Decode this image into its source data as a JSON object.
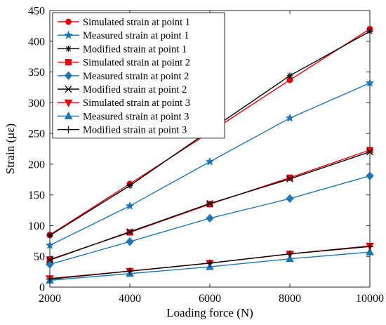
{
  "chart_data": {
    "type": "line",
    "title": "",
    "xlabel": "Loading force (N)",
    "ylabel": "Strain (με)",
    "xlim": [
      2000,
      10000
    ],
    "ylim": [
      0,
      450
    ],
    "xticks": [
      2000,
      4000,
      6000,
      8000,
      10000
    ],
    "yticks": [
      0,
      50,
      100,
      150,
      200,
      250,
      300,
      350,
      400,
      450
    ],
    "grid": false,
    "legend_position": "top-left",
    "x": [
      2000,
      4000,
      6000,
      8000,
      10000
    ],
    "series": [
      {
        "name": "Simulated strain at point 1",
        "color": "#e8000b",
        "marker": "circle",
        "values": [
          85,
          168,
          252,
          337,
          420
        ]
      },
      {
        "name": "Measured strain at point 1",
        "color": "#1f77b4",
        "marker": "star",
        "values": [
          68,
          132,
          204,
          275,
          332
        ]
      },
      {
        "name": "Modified strain at point 1",
        "color": "#000000",
        "marker": "asterisk",
        "values": [
          84,
          165,
          255,
          344,
          416
        ]
      },
      {
        "name": "Simulated strain at point 2",
        "color": "#e8000b",
        "marker": "square",
        "values": [
          45,
          89,
          135,
          178,
          223
        ]
      },
      {
        "name": "Measured strain at point 2",
        "color": "#1f77b4",
        "marker": "diamond",
        "values": [
          37,
          74,
          112,
          144,
          181
        ]
      },
      {
        "name": "Modified strain at point 2",
        "color": "#000000",
        "marker": "x",
        "values": [
          44,
          90,
          136,
          176,
          220
        ]
      },
      {
        "name": "Simulated strain at point 3",
        "color": "#e8000b",
        "marker": "triangle-down",
        "values": [
          14,
          26,
          39,
          54,
          67
        ]
      },
      {
        "name": "Measured strain at point 3",
        "color": "#1f77b4",
        "marker": "triangle-up",
        "values": [
          11,
          22,
          33,
          46,
          57
        ]
      },
      {
        "name": "Modified strain at point 3",
        "color": "#000000",
        "marker": "plus",
        "values": [
          13,
          26,
          39,
          54,
          66
        ]
      }
    ]
  }
}
